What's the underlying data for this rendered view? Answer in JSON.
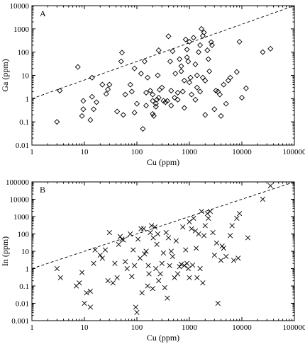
{
  "chart_data": [
    {
      "panel_label": "A",
      "type": "scatter",
      "marker": "diamond",
      "xlabel": "Cu (ppm)",
      "ylabel": "Ga (ppm)",
      "xscale": "log",
      "yscale": "log",
      "xlim": [
        1,
        100000
      ],
      "ylim": [
        0.01,
        10000
      ],
      "x_ticks": [
        "1",
        "10",
        "100",
        "1000",
        "10000",
        "100000"
      ],
      "y_ticks": [
        "0.01",
        "0.1",
        "1",
        "10",
        "100",
        "1000",
        "10000"
      ],
      "reference_line": {
        "style": "dashed",
        "points": [
          [
            1,
            1
          ],
          [
            100000,
            10000
          ]
        ]
      },
      "points": [
        [
          3,
          0.1
        ],
        [
          3.4,
          2.2
        ],
        [
          7.5,
          23
        ],
        [
          9,
          0.18
        ],
        [
          9.5,
          0.35
        ],
        [
          9.5,
          0.8
        ],
        [
          13,
          0.12
        ],
        [
          14,
          1.2
        ],
        [
          14,
          8
        ],
        [
          15,
          0.35
        ],
        [
          17,
          0.7
        ],
        [
          22,
          4
        ],
        [
          26,
          1.6
        ],
        [
          28,
          2.5
        ],
        [
          30,
          4
        ],
        [
          42,
          0.28
        ],
        [
          50,
          40
        ],
        [
          52,
          95
        ],
        [
          55,
          0.2
        ],
        [
          60,
          1.5
        ],
        [
          75,
          4
        ],
        [
          80,
          2
        ],
        [
          90,
          20
        ],
        [
          90,
          0.25
        ],
        [
          100,
          0.6
        ],
        [
          120,
          12
        ],
        [
          130,
          0.05
        ],
        [
          140,
          40
        ],
        [
          150,
          0.5
        ],
        [
          150,
          1.8
        ],
        [
          160,
          8
        ],
        [
          180,
          2.2
        ],
        [
          200,
          0.8
        ],
        [
          200,
          1.5
        ],
        [
          210,
          0.18
        ],
        [
          200,
          0.22
        ],
        [
          230,
          0.45
        ],
        [
          230,
          0.6
        ],
        [
          240,
          0.9
        ],
        [
          250,
          10
        ],
        [
          260,
          120
        ],
        [
          260,
          1.1
        ],
        [
          270,
          2.4
        ],
        [
          300,
          3
        ],
        [
          320,
          0.8
        ],
        [
          350,
          0.7
        ],
        [
          380,
          0.8
        ],
        [
          400,
          480
        ],
        [
          430,
          40
        ],
        [
          450,
          2.2
        ],
        [
          450,
          0.5
        ],
        [
          480,
          110
        ],
        [
          520,
          1.1
        ],
        [
          540,
          12
        ],
        [
          600,
          0.9
        ],
        [
          600,
          1.8
        ],
        [
          650,
          50
        ],
        [
          700,
          15
        ],
        [
          700,
          25
        ],
        [
          750,
          2
        ],
        [
          800,
          0.4
        ],
        [
          800,
          6
        ],
        [
          850,
          350
        ],
        [
          900,
          60
        ],
        [
          900,
          130
        ],
        [
          950,
          40
        ],
        [
          1000,
          280
        ],
        [
          1000,
          5
        ],
        [
          1050,
          8
        ],
        [
          1100,
          1.5
        ],
        [
          1200,
          420
        ],
        [
          1300,
          0.9
        ],
        [
          1300,
          30
        ],
        [
          1400,
          3
        ],
        [
          1400,
          10
        ],
        [
          1500,
          100
        ],
        [
          1600,
          200
        ],
        [
          1600,
          2
        ],
        [
          1700,
          1000
        ],
        [
          1800,
          500
        ],
        [
          1800,
          8
        ],
        [
          1900,
          700
        ],
        [
          2000,
          6
        ],
        [
          2000,
          0.2
        ],
        [
          2200,
          120
        ],
        [
          2300,
          50
        ],
        [
          2400,
          15
        ],
        [
          2600,
          270
        ],
        [
          2700,
          200
        ],
        [
          3000,
          0.35
        ],
        [
          3200,
          2.2
        ],
        [
          3500,
          2
        ],
        [
          3800,
          1.5
        ],
        [
          4000,
          0.18
        ],
        [
          4500,
          4
        ],
        [
          5000,
          0.6
        ],
        [
          5500,
          6
        ],
        [
          6000,
          8
        ],
        [
          8000,
          14
        ],
        [
          9000,
          280
        ],
        [
          10000,
          1.1
        ],
        [
          12000,
          2.8
        ],
        [
          25000,
          100
        ],
        [
          35000,
          140
        ]
      ]
    },
    {
      "panel_label": "B",
      "type": "scatter",
      "marker": "x",
      "xlabel": "Cu (ppm)",
      "ylabel": "In (ppm)",
      "xscale": "log",
      "yscale": "log",
      "xlim": [
        1,
        100000
      ],
      "ylim": [
        0.001,
        100000
      ],
      "x_ticks": [
        "1",
        "10",
        "100",
        "1000",
        "10000",
        "100000"
      ],
      "y_ticks": [
        "0.001",
        "0.01",
        "0.1",
        "1",
        "10",
        "100",
        "1000",
        "10000",
        "100000"
      ],
      "reference_line": {
        "style": "dashed",
        "points": [
          [
            1,
            1
          ],
          [
            100000,
            100000
          ]
        ]
      },
      "points": [
        [
          3,
          1
        ],
        [
          3.5,
          0.3
        ],
        [
          7,
          0.1
        ],
        [
          8,
          0.15
        ],
        [
          9,
          0.6
        ],
        [
          10,
          0.01
        ],
        [
          11,
          0.04
        ],
        [
          13,
          0.006
        ],
        [
          13,
          0.05
        ],
        [
          15,
          2
        ],
        [
          16,
          12
        ],
        [
          20,
          6
        ],
        [
          22,
          4
        ],
        [
          25,
          12
        ],
        [
          28,
          0.2
        ],
        [
          30,
          120
        ],
        [
          35,
          0.15
        ],
        [
          38,
          2
        ],
        [
          42,
          0.3
        ],
        [
          45,
          25
        ],
        [
          48,
          70
        ],
        [
          52,
          50
        ],
        [
          55,
          45
        ],
        [
          60,
          2.5
        ],
        [
          65,
          1
        ],
        [
          75,
          100
        ],
        [
          80,
          0.35
        ],
        [
          85,
          12
        ],
        [
          90,
          1.5
        ],
        [
          95,
          0.006
        ],
        [
          100,
          0.003
        ],
        [
          105,
          50
        ],
        [
          115,
          4
        ],
        [
          120,
          200
        ],
        [
          125,
          0.04
        ],
        [
          135,
          200
        ],
        [
          140,
          7
        ],
        [
          150,
          10
        ],
        [
          160,
          0.1
        ],
        [
          165,
          1.5
        ],
        [
          170,
          0.5
        ],
        [
          180,
          120
        ],
        [
          190,
          300
        ],
        [
          200,
          0.07
        ],
        [
          205,
          60
        ],
        [
          220,
          250
        ],
        [
          230,
          1
        ],
        [
          240,
          25
        ],
        [
          250,
          100
        ],
        [
          260,
          0.2
        ],
        [
          280,
          0.5
        ],
        [
          300,
          2
        ],
        [
          320,
          8
        ],
        [
          340,
          0.08
        ],
        [
          360,
          120
        ],
        [
          380,
          0.02
        ],
        [
          400,
          60
        ],
        [
          420,
          1.5
        ],
        [
          450,
          10
        ],
        [
          480,
          5
        ],
        [
          520,
          0.3
        ],
        [
          560,
          40
        ],
        [
          600,
          0.5
        ],
        [
          650,
          1.3
        ],
        [
          700,
          1.8
        ],
        [
          750,
          250
        ],
        [
          800,
          1.5
        ],
        [
          850,
          12
        ],
        [
          900,
          2
        ],
        [
          950,
          1
        ],
        [
          1000,
          500
        ],
        [
          1000,
          0.3
        ],
        [
          1100,
          200
        ],
        [
          1150,
          1.6
        ],
        [
          1200,
          800
        ],
        [
          1300,
          150
        ],
        [
          1350,
          15
        ],
        [
          1400,
          0.3
        ],
        [
          1500,
          100
        ],
        [
          1600,
          1
        ],
        [
          1700,
          2000
        ],
        [
          1800,
          0.15
        ],
        [
          1900,
          80
        ],
        [
          2000,
          300
        ],
        [
          2200,
          1500
        ],
        [
          2300,
          800
        ],
        [
          2500,
          2000
        ],
        [
          2800,
          120
        ],
        [
          3000,
          6
        ],
        [
          3300,
          30
        ],
        [
          3500,
          0.01
        ],
        [
          4000,
          3
        ],
        [
          4200,
          20
        ],
        [
          4500,
          15
        ],
        [
          5000,
          5
        ],
        [
          6000,
          80
        ],
        [
          6500,
          300
        ],
        [
          7000,
          3
        ],
        [
          8000,
          800
        ],
        [
          8500,
          4
        ],
        [
          9000,
          1500
        ],
        [
          13000,
          60
        ],
        [
          25000,
          10000
        ],
        [
          35000,
          60000
        ]
      ]
    }
  ]
}
